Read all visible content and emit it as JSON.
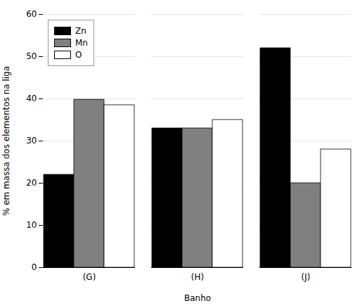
{
  "chart_data": {
    "type": "bar",
    "categories": [
      "(G)",
      "(H)",
      "(J)"
    ],
    "series": [
      {
        "name": "Zn",
        "color": "#000000",
        "values": [
          22,
          33,
          52
        ]
      },
      {
        "name": "Mn",
        "color": "#808080",
        "values": [
          39.8,
          33,
          20
        ]
      },
      {
        "name": "O",
        "color": "#ffffff",
        "values": [
          38.5,
          35,
          28
        ]
      }
    ],
    "xlabel": "Banho",
    "ylabel": "% em massa dos elementos na liga",
    "ylim": [
      0,
      60
    ],
    "yticks": [
      0,
      10,
      20,
      30,
      40,
      50,
      60
    ],
    "grid": true,
    "legend": "upper left"
  }
}
